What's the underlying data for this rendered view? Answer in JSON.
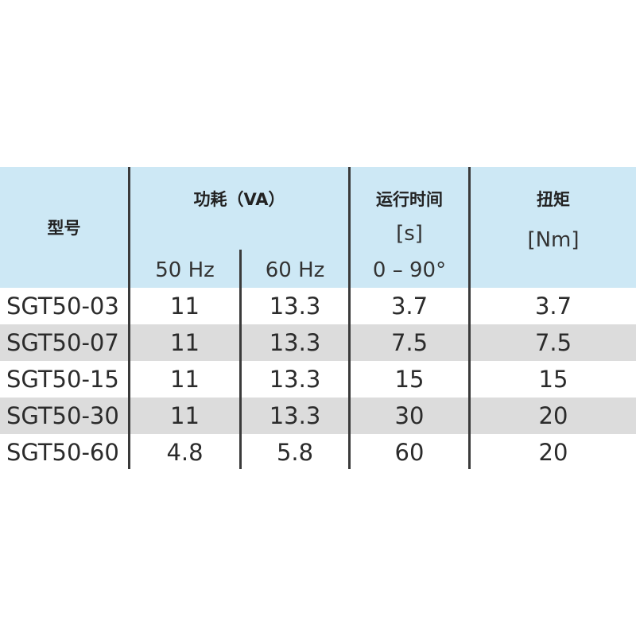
{
  "table": {
    "headers": {
      "model": "型号",
      "power": "功耗（VA）",
      "freq_50": "50 Hz",
      "freq_60": "60 Hz",
      "runtime": "运行时间",
      "runtime_unit": "[s]",
      "runtime_range": "0 – 90°",
      "torque": "扭矩",
      "torque_unit": "[Nm]"
    },
    "rows": [
      {
        "model": "SGT50-03",
        "p50": "11",
        "p60": "13.3",
        "runtime": "3.7",
        "torque": "3.7"
      },
      {
        "model": "SGT50-07",
        "p50": "11",
        "p60": "13.3",
        "runtime": "7.5",
        "torque": "7.5"
      },
      {
        "model": "SGT50-15",
        "p50": "11",
        "p60": "13.3",
        "runtime": "15",
        "torque": "15"
      },
      {
        "model": "SGT50-30",
        "p50": "11",
        "p60": "13.3",
        "runtime": "30",
        "torque": "20"
      },
      {
        "model": "SGT50-60",
        "p50": "4.8",
        "p60": "5.8",
        "runtime": "60",
        "torque": "20"
      }
    ]
  },
  "colors": {
    "header_bg": "#cde8f5",
    "row_shade": "#dcdcdc",
    "divider": "#3a3a3a"
  }
}
